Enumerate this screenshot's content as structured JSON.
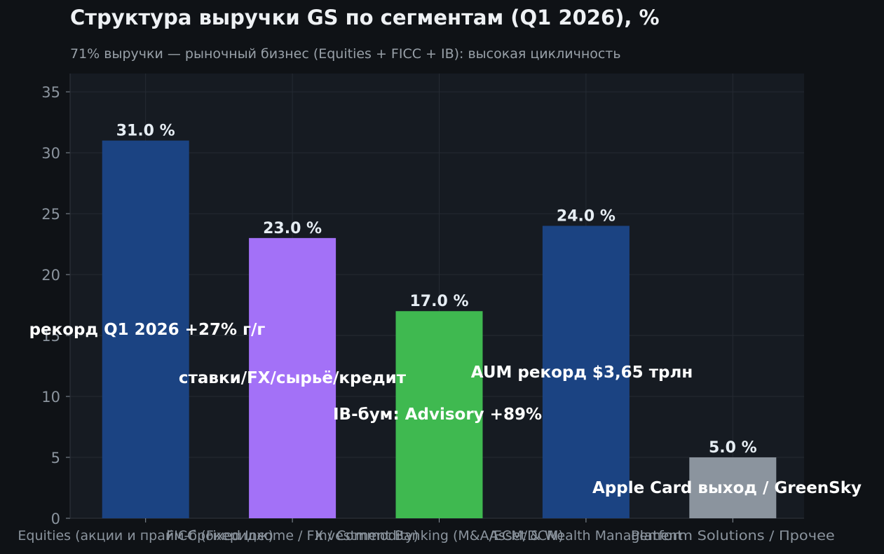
{
  "chart_data": {
    "type": "bar",
    "title": "Структура выручки GS по сегментам (Q1 2026), %",
    "subtitle": "71% выручки — рыночный бизнес (Equities + FICC + IB): высокая цикличность",
    "categories": [
      "Equities (акции и прайм-брокеридж)",
      "FICC (Fixed Income / FX / Commodity)",
      "Investment Banking (M&A/ECM/DCM)",
      "Asset & Wealth Management",
      "Platform Solutions / Прочее"
    ],
    "values": [
      31.0,
      23.0,
      17.0,
      24.0,
      5.0
    ],
    "value_labels": [
      "31.0 %",
      "23.0 %",
      "17.0 %",
      "24.0 %",
      "5.0 %"
    ],
    "bar_colors": [
      "#1b4382",
      "#a371f7",
      "#3fb950",
      "#1b4382",
      "#8b949e"
    ],
    "annotations": [
      "рекорд Q1 2026 +27% г/г",
      "ставки/FX/сырьё/кредит",
      "IB-бум: Advisory +89%",
      "AUM рекорд $3,65 трлн",
      "Apple Card выход / GreenSky"
    ],
    "xlabel": "",
    "ylabel": "",
    "ylim": [
      0,
      36.5
    ],
    "yticks": [
      0,
      5,
      10,
      15,
      20,
      25,
      30,
      35
    ],
    "grid": true,
    "legend": "none",
    "colors": {
      "figure_bg": "#0f1216",
      "plot_bg": "#161b22",
      "grid": "#252b33",
      "tick_text": "#8b949e",
      "title": "#eef1f4",
      "subtitle": "#98a0a8",
      "value_label": "#e6edf3",
      "annotation": "#ffffff"
    }
  }
}
